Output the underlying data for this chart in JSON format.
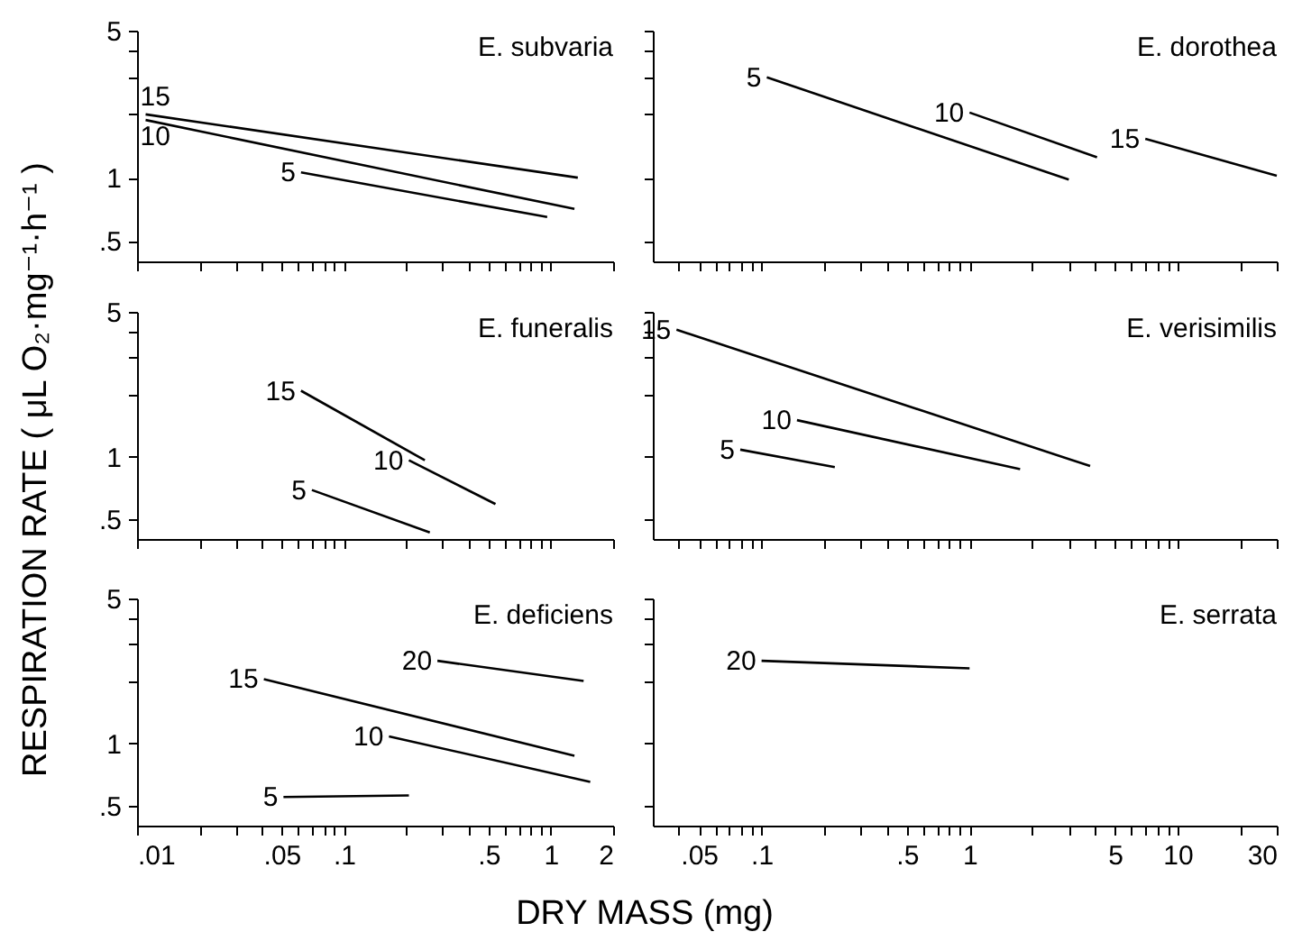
{
  "chart_data": [
    {
      "type": "line",
      "title": "E. subvaria",
      "log": "xy",
      "tick_labels": "y",
      "xlim": [
        0.01,
        2
      ],
      "ylim": [
        0.4,
        5
      ],
      "xticks": [
        0.01,
        0.02,
        0.03,
        0.04,
        0.05,
        0.06,
        0.07,
        0.08,
        0.09,
        0.1,
        0.2,
        0.3,
        0.4,
        0.5,
        0.6,
        0.7,
        0.8,
        0.9,
        1,
        2
      ],
      "yticks": [
        {
          "value": 0.5,
          "label": ".5"
        },
        1,
        {
          "value": 2,
          "label": null
        },
        {
          "value": 3,
          "label": null
        },
        {
          "value": 4,
          "label": null
        },
        5
      ],
      "series": [
        {
          "name": "15",
          "color": "#000000",
          "x": [
            0.011,
            1.35
          ],
          "values": [
            2.0,
            1.0
          ]
        },
        {
          "name": "10",
          "color": "#000000",
          "x": [
            0.011,
            1.3
          ],
          "values": [
            1.88,
            0.71
          ]
        },
        {
          "name": "5",
          "color": "#000000",
          "x": [
            0.062,
            0.96
          ],
          "values": [
            1.06,
            0.65
          ]
        }
      ]
    },
    {
      "type": "line",
      "title": "E. dorothea",
      "log": "xy",
      "tick_labels": false,
      "xlim": [
        0.03,
        30
      ],
      "ylim": [
        0.4,
        5
      ],
      "xticks": [
        0.04,
        0.05,
        0.06,
        0.07,
        0.08,
        0.09,
        0.1,
        0.2,
        0.3,
        0.4,
        0.5,
        0.6,
        0.7,
        0.8,
        0.9,
        1,
        2,
        3,
        4,
        5,
        6,
        7,
        8,
        9,
        10,
        20,
        30
      ],
      "yticks": [
        0.5,
        1,
        2,
        3,
        4,
        5
      ],
      "series": [
        {
          "name": "5",
          "color": "#000000",
          "x": [
            0.106,
            3.0
          ],
          "values": [
            3.0,
            0.98
          ]
        },
        {
          "name": "10",
          "color": "#000000",
          "x": [
            1.0,
            4.1
          ],
          "values": [
            2.04,
            1.25
          ]
        },
        {
          "name": "15",
          "color": "#000000",
          "x": [
            7.0,
            30
          ],
          "values": [
            1.53,
            1.02
          ]
        }
      ]
    },
    {
      "type": "line",
      "title": "E. funeralis",
      "ylabel": "RESPIRATION RATE ( μL O₂·mg⁻¹·h⁻¹ )",
      "log": "xy",
      "tick_labels": "y",
      "xlim": [
        0.01,
        2
      ],
      "ylim": [
        0.4,
        5
      ],
      "xticks": [
        0.01,
        0.02,
        0.03,
        0.04,
        0.05,
        0.06,
        0.07,
        0.08,
        0.09,
        0.1,
        0.2,
        0.3,
        0.4,
        0.5,
        0.6,
        0.7,
        0.8,
        0.9,
        1,
        2
      ],
      "yticks": [
        {
          "value": 0.5,
          "label": ".5"
        },
        1,
        {
          "value": 2,
          "label": null
        },
        {
          "value": 3,
          "label": null
        },
        {
          "value": 4,
          "label": null
        },
        5
      ],
      "series": [
        {
          "name": "15",
          "color": "#000000",
          "x": [
            0.062,
            0.246
          ],
          "values": [
            2.08,
            0.96
          ]
        },
        {
          "name": "10",
          "color": "#000000",
          "x": [
            0.206,
            0.54
          ],
          "values": [
            0.96,
            0.59
          ]
        },
        {
          "name": "5",
          "color": "#000000",
          "x": [
            0.07,
            0.26
          ],
          "values": [
            0.69,
            0.43
          ]
        }
      ]
    },
    {
      "type": "line",
      "title": "E. verisimilis",
      "log": "xy",
      "tick_labels": false,
      "xlim": [
        0.03,
        30
      ],
      "ylim": [
        0.4,
        5
      ],
      "xticks": [
        0.04,
        0.05,
        0.06,
        0.07,
        0.08,
        0.09,
        0.1,
        0.2,
        0.3,
        0.4,
        0.5,
        0.6,
        0.7,
        0.8,
        0.9,
        1,
        2,
        3,
        4,
        5,
        6,
        7,
        8,
        9,
        10,
        20,
        30
      ],
      "yticks": [
        0.5,
        1,
        2,
        3,
        4,
        5
      ],
      "series": [
        {
          "name": "15",
          "color": "#000000",
          "x": [
            0.039,
            3.8
          ],
          "values": [
            4.1,
            0.9
          ]
        },
        {
          "name": "10",
          "color": "#000000",
          "x": [
            0.148,
            1.75
          ],
          "values": [
            1.5,
            0.87
          ]
        },
        {
          "name": "5",
          "color": "#000000",
          "x": [
            0.079,
            0.225
          ],
          "values": [
            1.08,
            0.89
          ]
        }
      ]
    },
    {
      "type": "line",
      "title": "E. deficiens",
      "xlabel": "DRY MASS (mg)",
      "log": "xy",
      "xlim": [
        0.01,
        2
      ],
      "ylim": [
        0.4,
        5
      ],
      "xticks": [
        {
          "value": 0.01,
          "label": ".01"
        },
        {
          "value": 0.02,
          "label": null
        },
        {
          "value": 0.03,
          "label": null
        },
        {
          "value": 0.04,
          "label": null
        },
        {
          "value": 0.05,
          "label": ".05"
        },
        {
          "value": 0.06,
          "label": null
        },
        {
          "value": 0.07,
          "label": null
        },
        {
          "value": 0.08,
          "label": null
        },
        {
          "value": 0.09,
          "label": null
        },
        {
          "value": 0.1,
          "label": ".1"
        },
        {
          "value": 0.2,
          "label": null
        },
        {
          "value": 0.3,
          "label": null
        },
        {
          "value": 0.4,
          "label": null
        },
        {
          "value": 0.5,
          "label": ".5"
        },
        {
          "value": 0.6,
          "label": null
        },
        {
          "value": 0.7,
          "label": null
        },
        {
          "value": 0.8,
          "label": null
        },
        {
          "value": 0.9,
          "label": null
        },
        1,
        2
      ],
      "yticks": [
        {
          "value": 0.5,
          "label": ".5"
        },
        1,
        {
          "value": 2,
          "label": null
        },
        {
          "value": 3,
          "label": null
        },
        {
          "value": 4,
          "label": null
        },
        5
      ],
      "series": [
        {
          "name": "20",
          "color": "#000000",
          "x": [
            0.283,
            1.44
          ],
          "values": [
            2.5,
            2.0
          ]
        },
        {
          "name": "15",
          "color": "#000000",
          "x": [
            0.041,
            1.3
          ],
          "values": [
            2.04,
            0.87
          ]
        },
        {
          "name": "10",
          "color": "#000000",
          "x": [
            0.165,
            1.55
          ],
          "values": [
            1.08,
            0.65
          ]
        },
        {
          "name": "5",
          "color": "#000000",
          "x": [
            0.051,
            0.206
          ],
          "values": [
            0.55,
            0.56
          ]
        }
      ]
    },
    {
      "type": "line",
      "title": "E. serrata",
      "log": "xy",
      "tick_labels": "x",
      "xlim": [
        0.03,
        30
      ],
      "ylim": [
        0.4,
        5
      ],
      "xticks": [
        {
          "value": 0.04,
          "label": null
        },
        {
          "value": 0.05,
          "label": ".05"
        },
        {
          "value": 0.06,
          "label": null
        },
        {
          "value": 0.07,
          "label": null
        },
        {
          "value": 0.08,
          "label": null
        },
        {
          "value": 0.09,
          "label": null
        },
        {
          "value": 0.1,
          "label": ".1"
        },
        {
          "value": 0.2,
          "label": null
        },
        {
          "value": 0.3,
          "label": null
        },
        {
          "value": 0.4,
          "label": null
        },
        {
          "value": 0.5,
          "label": ".5"
        },
        {
          "value": 0.6,
          "label": null
        },
        {
          "value": 0.7,
          "label": null
        },
        {
          "value": 0.8,
          "label": null
        },
        {
          "value": 0.9,
          "label": null
        },
        1,
        {
          "value": 2,
          "label": null
        },
        {
          "value": 3,
          "label": null
        },
        {
          "value": 4,
          "label": null
        },
        5,
        {
          "value": 6,
          "label": null
        },
        {
          "value": 7,
          "label": null
        },
        {
          "value": 8,
          "label": null
        },
        {
          "value": 9,
          "label": null
        },
        10,
        {
          "value": 20,
          "label": null
        },
        30
      ],
      "yticks": [
        0.5,
        1,
        2,
        3,
        4,
        5
      ],
      "series": [
        {
          "name": "20",
          "color": "#000000",
          "x": [
            0.1,
            1.0
          ],
          "values": [
            2.5,
            2.3
          ]
        }
      ]
    }
  ]
}
